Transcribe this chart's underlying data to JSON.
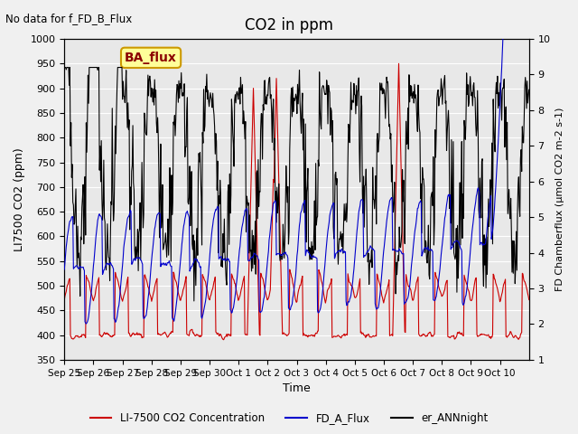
{
  "title": "CO2 in ppm",
  "top_left_text": "No data for f_FD_B_Flux",
  "annotation_box": "BA_flux",
  "xlabel": "Time",
  "ylabel_left": "LI7500 CO2 (ppm)",
  "ylabel_right": "FD Chamberflux (μmol CO2 m-2 s-1)",
  "ylim_left": [
    350,
    1000
  ],
  "ylim_right": [
    1.0,
    10.0
  ],
  "yticks_left": [
    350,
    400,
    450,
    500,
    550,
    600,
    650,
    700,
    750,
    800,
    850,
    900,
    950,
    1000
  ],
  "yticks_right": [
    1.0,
    2.0,
    3.0,
    4.0,
    5.0,
    6.0,
    7.0,
    8.0,
    9.0,
    10.0
  ],
  "xtick_positions": [
    0,
    1,
    2,
    3,
    4,
    5,
    6,
    7,
    8,
    9,
    10,
    11,
    12,
    13,
    14,
    15
  ],
  "xtick_labels": [
    "Sep 25",
    "Sep 26",
    "Sep 27",
    "Sep 28",
    "Sep 29",
    "Sep 30",
    "Oct 1",
    "Oct 2",
    "Oct 3",
    "Oct 4",
    "Oct 5",
    "Oct 6",
    "Oct 7",
    "Oct 8",
    "Oct 9",
    "Oct 10"
  ],
  "legend_labels": [
    "LI-7500 CO2 Concentration",
    "FD_A_Flux",
    "er_ANNnight"
  ],
  "line_colors": {
    "red": "#cc0000",
    "blue": "#0000cc",
    "black": "#000000"
  },
  "background_color": "#f0f0f0",
  "plot_bg_color": "#e8e8e8",
  "annotation_bg": "#ffff99",
  "annotation_border": "#cc9900",
  "n_days": 16
}
